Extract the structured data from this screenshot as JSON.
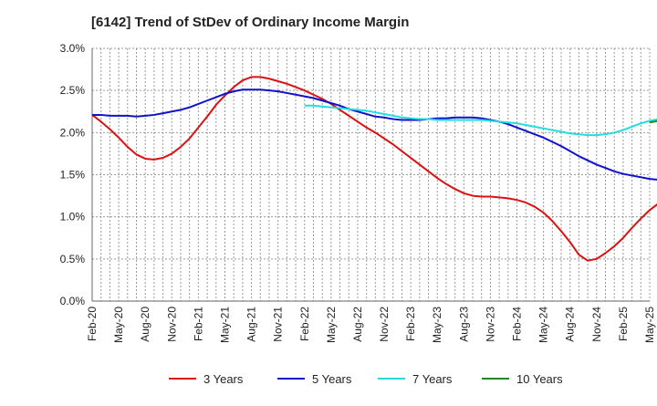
{
  "chart_data": {
    "type": "line",
    "title": "[6142]  Trend of StDev of Ordinary Income Margin",
    "xlabel": "",
    "ylabel": "",
    "ylim": [
      0,
      3.0
    ],
    "y_ticks": [
      0,
      0.5,
      1.0,
      1.5,
      2.0,
      2.5,
      3.0
    ],
    "y_tick_labels": [
      "0.0%",
      "0.5%",
      "1.0%",
      "1.5%",
      "2.0%",
      "2.5%",
      "3.0%"
    ],
    "x_tick_labels": [
      "Feb-20",
      "May-20",
      "Aug-20",
      "Nov-20",
      "Feb-21",
      "May-21",
      "Aug-21",
      "Nov-21",
      "Feb-22",
      "May-22",
      "Aug-22",
      "Nov-22",
      "Feb-23",
      "May-23",
      "Aug-23",
      "Nov-23",
      "Feb-24",
      "May-24",
      "Aug-24",
      "Nov-24",
      "Feb-25",
      "May-25"
    ],
    "grid": true,
    "legend_position": "bottom",
    "series": [
      {
        "name": "3 Years",
        "color": "#dd1111",
        "start_index": 0,
        "values": [
          2.21,
          2.13,
          2.04,
          1.94,
          1.83,
          1.74,
          1.69,
          1.68,
          1.7,
          1.75,
          1.83,
          1.93,
          2.06,
          2.19,
          2.33,
          2.44,
          2.54,
          2.62,
          2.66,
          2.66,
          2.64,
          2.61,
          2.58,
          2.54,
          2.5,
          2.45,
          2.4,
          2.34,
          2.27,
          2.2,
          2.13,
          2.06,
          2.0,
          1.93,
          1.86,
          1.78,
          1.7,
          1.62,
          1.54,
          1.46,
          1.39,
          1.33,
          1.28,
          1.25,
          1.24,
          1.24,
          1.23,
          1.22,
          1.2,
          1.17,
          1.12,
          1.05,
          0.95,
          0.83,
          0.7,
          0.55,
          0.48,
          0.5,
          0.57,
          0.65,
          0.75,
          0.87,
          0.98,
          1.08,
          1.16,
          1.22
        ]
      },
      {
        "name": "5 Years",
        "color": "#1111cc",
        "start_index": 0,
        "values": [
          2.21,
          2.21,
          2.2,
          2.2,
          2.2,
          2.19,
          2.2,
          2.21,
          2.23,
          2.25,
          2.27,
          2.3,
          2.34,
          2.38,
          2.42,
          2.46,
          2.49,
          2.51,
          2.51,
          2.51,
          2.5,
          2.49,
          2.47,
          2.45,
          2.43,
          2.41,
          2.38,
          2.35,
          2.32,
          2.28,
          2.25,
          2.22,
          2.19,
          2.18,
          2.16,
          2.15,
          2.15,
          2.15,
          2.16,
          2.17,
          2.17,
          2.18,
          2.18,
          2.18,
          2.17,
          2.15,
          2.13,
          2.1,
          2.06,
          2.02,
          1.98,
          1.94,
          1.89,
          1.84,
          1.78,
          1.72,
          1.67,
          1.62,
          1.58,
          1.54,
          1.51,
          1.49,
          1.47,
          1.45,
          1.44,
          1.42
        ]
      },
      {
        "name": "7 Years",
        "color": "#22dddd",
        "start_index": 24,
        "values": [
          2.32,
          2.32,
          2.31,
          2.3,
          2.29,
          2.28,
          2.27,
          2.26,
          2.24,
          2.22,
          2.2,
          2.18,
          2.17,
          2.16,
          2.16,
          2.15,
          2.15,
          2.15,
          2.15,
          2.15,
          2.15,
          2.14,
          2.13,
          2.12,
          2.11,
          2.09,
          2.07,
          2.05,
          2.03,
          2.01,
          1.99,
          1.98,
          1.97,
          1.97,
          1.98,
          2.0,
          2.03,
          2.07,
          2.11,
          2.14,
          2.16
        ]
      },
      {
        "name": "10 Years",
        "color": "#228822",
        "start_index": 63,
        "values": [
          2.12,
          2.14,
          2.16
        ]
      }
    ]
  }
}
